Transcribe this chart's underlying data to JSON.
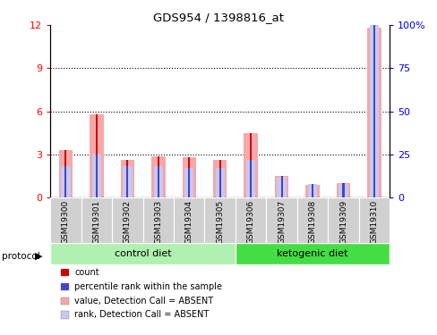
{
  "title": "GDS954 / 1398816_at",
  "samples": [
    "GSM19300",
    "GSM19301",
    "GSM19302",
    "GSM19303",
    "GSM19304",
    "GSM19305",
    "GSM19306",
    "GSM19307",
    "GSM19308",
    "GSM19309",
    "GSM19310"
  ],
  "value_absent": [
    3.3,
    5.8,
    2.6,
    2.9,
    2.8,
    2.6,
    4.5,
    1.5,
    0.9,
    1.0,
    11.8
  ],
  "rank_absent_pct": [
    18,
    25,
    18,
    18,
    17,
    17,
    22,
    12,
    8,
    8,
    100
  ],
  "ylim_left": [
    0,
    12
  ],
  "ylim_right": [
    0,
    100
  ],
  "yticks_left": [
    0,
    3,
    6,
    9,
    12
  ],
  "yticks_right": [
    0,
    25,
    50,
    75,
    100
  ],
  "yticklabels_right": [
    "0",
    "25",
    "50",
    "75",
    "100%"
  ],
  "n_control": 6,
  "n_ketogenic": 5,
  "color_value_absent": "#f4a9a8",
  "color_rank_absent": "#c8c8f0",
  "color_count": "#cc0000",
  "color_rank": "#4444cc",
  "color_control_bg": "#b0f0b0",
  "color_ketogenic_bg": "#44dd44",
  "color_sample_bg": "#d0d0d0",
  "legend_items": [
    {
      "label": "count",
      "color": "#cc0000"
    },
    {
      "label": "percentile rank within the sample",
      "color": "#4444cc"
    },
    {
      "label": "value, Detection Call = ABSENT",
      "color": "#f4a9a8"
    },
    {
      "label": "rank, Detection Call = ABSENT",
      "color": "#c8c8f0"
    }
  ]
}
